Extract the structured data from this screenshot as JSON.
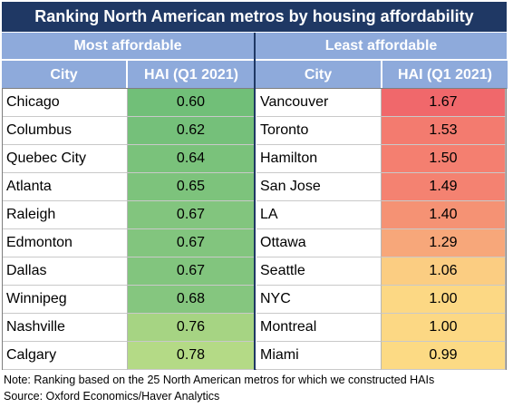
{
  "title": "Ranking North American metros by housing affordability",
  "panels": {
    "left_heading": "Most affordable",
    "right_heading": "Least affordable",
    "col_city": "City",
    "col_hai": "HAI (Q1 2021)"
  },
  "chart_data": {
    "type": "table",
    "title": "Ranking North American metros by housing affordability",
    "columns": [
      "City",
      "HAI (Q1 2021)"
    ],
    "most_affordable": [
      {
        "city": "Chicago",
        "hai": "0.60",
        "color": "#71bf78"
      },
      {
        "city": "Columbus",
        "hai": "0.62",
        "color": "#75c07a"
      },
      {
        "city": "Quebec City",
        "hai": "0.64",
        "color": "#7ac27b"
      },
      {
        "city": "Atlanta",
        "hai": "0.65",
        "color": "#7dc37c"
      },
      {
        "city": "Raleigh",
        "hai": "0.67",
        "color": "#82c57e"
      },
      {
        "city": "Edmonton",
        "hai": "0.67",
        "color": "#82c57e"
      },
      {
        "city": "Dallas",
        "hai": "0.67",
        "color": "#82c57e"
      },
      {
        "city": "Winnipeg",
        "hai": "0.68",
        "color": "#85c67f"
      },
      {
        "city": "Nashville",
        "hai": "0.76",
        "color": "#a6d483"
      },
      {
        "city": "Calgary",
        "hai": "0.78",
        "color": "#b4da86"
      }
    ],
    "least_affordable": [
      {
        "city": "Vancouver",
        "hai": "1.67",
        "color": "#f0686b"
      },
      {
        "city": "Toronto",
        "hai": "1.53",
        "color": "#f37b6f"
      },
      {
        "city": "Hamilton",
        "hai": "1.50",
        "color": "#f47f70"
      },
      {
        "city": "San Jose",
        "hai": "1.49",
        "color": "#f48271"
      },
      {
        "city": "LA",
        "hai": "1.40",
        "color": "#f59274"
      },
      {
        "city": "Ottawa",
        "hai": "1.29",
        "color": "#f7a77a"
      },
      {
        "city": "Seattle",
        "hai": "1.06",
        "color": "#fbcd82"
      },
      {
        "city": "NYC",
        "hai": "1.00",
        "color": "#fcd884"
      },
      {
        "city": "Montreal",
        "hai": "1.00",
        "color": "#fcd884"
      },
      {
        "city": "Miami",
        "hai": "0.99",
        "color": "#fcda84"
      }
    ]
  },
  "footer": {
    "note": "Note: Ranking based on the 25 North American metros for which we constructed HAIs",
    "source": "Source: Oxford Economics/Haver Analytics"
  }
}
